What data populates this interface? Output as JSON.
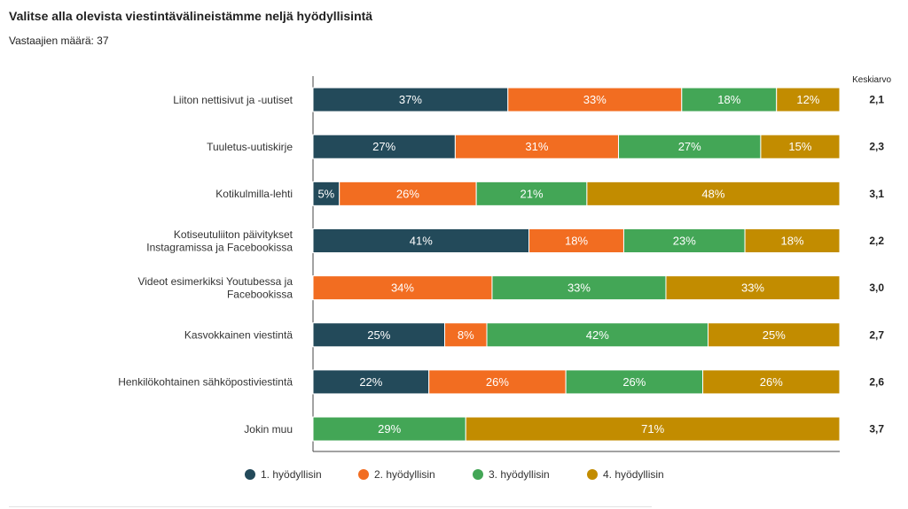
{
  "header": {
    "title": "Valitse alla olevista viestintävälineistämme neljä hyödyllisintä",
    "subtitle": "Vastaajien määrä: 37"
  },
  "chart_data": {
    "type": "bar",
    "orientation": "horizontal",
    "stacked": true,
    "percent_stacked": true,
    "categories": [
      "Liiton nettisivut ja -uutiset",
      "Tuuletus-uutiskirje",
      "Kotikulmilla-lehti",
      "Kotiseutuliiton päivitykset Instagramissa ja Facebookissa",
      "Videot esimerkiksi Youtubessa ja Facebookissa",
      "Kasvokkainen viestintä",
      "Henkilökohtainen sähköpostiviestintä",
      "Jokin muu"
    ],
    "series": [
      {
        "name": "1. hyödyllisin",
        "color": "#234a5a",
        "values": [
          37,
          27,
          5,
          41,
          0,
          25,
          22,
          0
        ]
      },
      {
        "name": "2. hyödyllisin",
        "color": "#f26d21",
        "values": [
          33,
          31,
          26,
          18,
          34,
          8,
          26,
          0
        ]
      },
      {
        "name": "3. hyödyllisin",
        "color": "#43a656",
        "values": [
          18,
          27,
          21,
          23,
          33,
          42,
          26,
          29
        ]
      },
      {
        "name": "4. hyödyllisin",
        "color": "#c28c00",
        "values": [
          12,
          15,
          48,
          18,
          33,
          25,
          26,
          71
        ]
      }
    ],
    "right_column_header": "Keskiarvo",
    "averages": [
      "2,1",
      "2,3",
      "3,1",
      "2,2",
      "3,0",
      "2,7",
      "2,6",
      "3,7"
    ],
    "xlim": [
      0,
      100
    ],
    "legend_position": "bottom",
    "grid": false
  }
}
